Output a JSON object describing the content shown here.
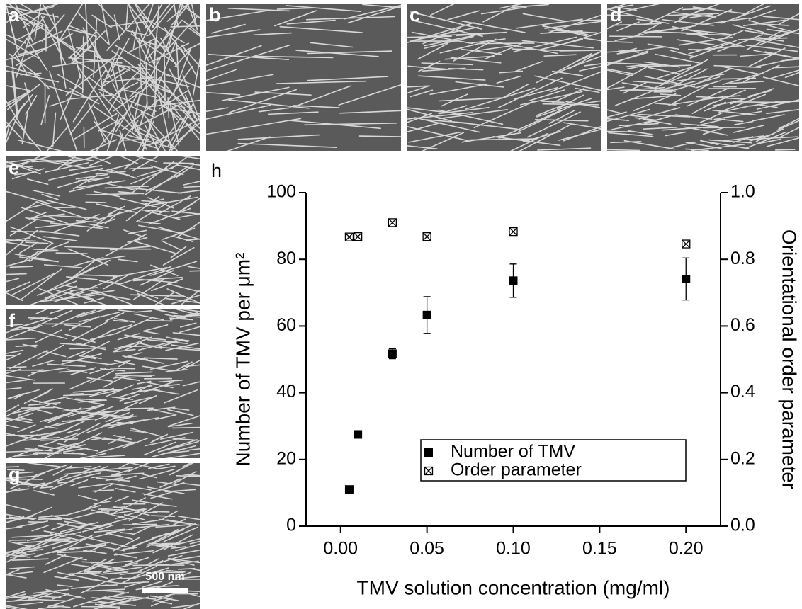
{
  "panels": {
    "labels": [
      "a",
      "b",
      "c",
      "d",
      "e",
      "f",
      "g"
    ],
    "scale_bar": "500 nm"
  },
  "chart_data": {
    "type": "scatter",
    "label": "h",
    "xlabel": "TMV solution concentration (mg/ml)",
    "ylabel": "Number of TMV per μm²",
    "y2label": "Orientational order parameter",
    "xlim": [
      -0.02,
      0.22
    ],
    "xticks": [
      {
        "value": 0,
        "label": "0.00"
      },
      0.05,
      {
        "value": 0.1,
        "label": "0.10"
      },
      0.15,
      {
        "value": 0.2,
        "label": "0.20"
      }
    ],
    "ylim": [
      0,
      100
    ],
    "yticks": [
      0,
      20,
      40,
      60,
      80,
      100
    ],
    "y2lim": [
      0,
      1
    ],
    "y2ticks": [
      {
        "value": 0,
        "label": "0.0"
      },
      0.2,
      0.4,
      0.6,
      0.8,
      {
        "value": 1,
        "label": "1.0"
      }
    ],
    "legend": "lower right",
    "series": [
      {
        "name": "Number of TMV",
        "marker": "square",
        "color": "#000000",
        "x": [
          0.005,
          0.01,
          0.03,
          0.05,
          0.1,
          0.2
        ],
        "values": [
          11,
          27.5,
          51.7,
          63.3,
          73.6,
          74.1
        ],
        "errors": [
          0.5,
          1,
          1.5,
          5.5,
          5,
          6.3
        ]
      },
      {
        "name": "Order parameter",
        "marker": "crossed-square",
        "color": "#000000",
        "axis": "y2",
        "x": [
          0.005,
          0.01,
          0.03,
          0.05,
          0.1,
          0.2
        ],
        "values": [
          0.867,
          0.868,
          0.91,
          0.868,
          0.883,
          0.846
        ]
      }
    ]
  }
}
